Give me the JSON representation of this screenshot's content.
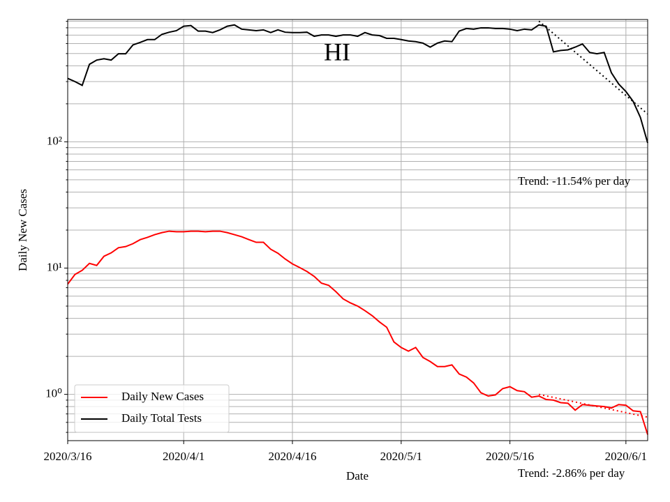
{
  "chart_data": {
    "type": "line",
    "title": "HI",
    "xlabel": "Date",
    "ylabel": "Daily New Cases",
    "log_y": true,
    "grid": true,
    "legend": "lower left",
    "x": [
      "2020/3/16",
      "2020/3/17",
      "2020/3/18",
      "2020/3/19",
      "2020/3/20",
      "2020/3/21",
      "2020/3/22",
      "2020/3/23",
      "2020/3/24",
      "2020/3/25",
      "2020/3/26",
      "2020/3/27",
      "2020/3/28",
      "2020/3/29",
      "2020/3/30",
      "2020/3/31",
      "2020/4/1",
      "2020/4/2",
      "2020/4/3",
      "2020/4/4",
      "2020/4/5",
      "2020/4/6",
      "2020/4/7",
      "2020/4/8",
      "2020/4/9",
      "2020/4/10",
      "2020/4/11",
      "2020/4/12",
      "2020/4/13",
      "2020/4/14",
      "2020/4/15",
      "2020/4/16",
      "2020/4/17",
      "2020/4/18",
      "2020/4/19",
      "2020/4/20",
      "2020/4/21",
      "2020/4/22",
      "2020/4/23",
      "2020/4/24",
      "2020/4/25",
      "2020/4/26",
      "2020/4/27",
      "2020/4/28",
      "2020/4/29",
      "2020/4/30",
      "2020/5/1",
      "2020/5/2",
      "2020/5/3",
      "2020/5/4",
      "2020/5/5",
      "2020/5/6",
      "2020/5/7",
      "2020/5/8",
      "2020/5/9",
      "2020/5/10",
      "2020/5/11",
      "2020/5/12",
      "2020/5/13",
      "2020/5/14",
      "2020/5/15",
      "2020/5/16",
      "2020/5/17",
      "2020/5/18",
      "2020/5/19",
      "2020/5/20",
      "2020/5/21",
      "2020/5/22",
      "2020/5/23",
      "2020/5/24",
      "2020/5/25",
      "2020/5/26",
      "2020/5/27",
      "2020/5/28",
      "2020/5/29",
      "2020/5/30",
      "2020/5/31",
      "2020/6/1",
      "2020/6/2",
      "2020/6/3",
      "2020/6/4"
    ],
    "xlim": [
      "2020/3/16",
      "2020/6/4"
    ],
    "xticks": [
      "2020/3/16",
      "2020/4/1",
      "2020/4/16",
      "2020/5/1",
      "2020/5/16",
      "2020/6/1"
    ],
    "ylim": [
      0.43,
      930
    ],
    "yticks": [
      {
        "value": 1,
        "label": "10⁰"
      },
      {
        "value": 10,
        "label": "10¹"
      },
      {
        "value": 100,
        "label": "10²"
      }
    ],
    "minor_yticks": [
      0.5,
      0.6,
      0.7,
      0.8,
      0.9,
      2,
      3,
      4,
      5,
      6,
      7,
      8,
      9,
      20,
      30,
      40,
      50,
      60,
      70,
      80,
      90,
      200,
      300,
      400,
      500,
      600,
      700,
      800,
      900
    ],
    "series": [
      {
        "name": "Daily New Cases",
        "color": "#ff0000",
        "values": [
          7.46,
          8.9,
          9.6,
          10.9,
          10.5,
          12.4,
          13.2,
          14.5,
          14.8,
          15.6,
          16.8,
          17.5,
          18.4,
          19.1,
          19.6,
          19.4,
          19.4,
          19.6,
          19.6,
          19.4,
          19.6,
          19.6,
          19.1,
          18.4,
          17.7,
          16.8,
          16.0,
          16.0,
          14.1,
          13.1,
          11.8,
          10.8,
          10.1,
          9.4,
          8.6,
          7.6,
          7.3,
          6.5,
          5.7,
          5.3,
          5.0,
          4.6,
          4.2,
          3.75,
          3.4,
          2.6,
          2.35,
          2.2,
          2.35,
          1.96,
          1.82,
          1.66,
          1.66,
          1.71,
          1.45,
          1.37,
          1.23,
          1.03,
          0.97,
          0.99,
          1.11,
          1.15,
          1.07,
          1.05,
          0.95,
          0.97,
          0.91,
          0.9,
          0.86,
          0.85,
          0.75,
          0.83,
          0.82,
          0.81,
          0.8,
          0.78,
          0.83,
          0.82,
          0.74,
          0.73,
          0.48
        ]
      },
      {
        "name": "Daily Total Tests",
        "color": "#000000",
        "values": [
          318,
          300,
          280,
          411,
          444,
          455,
          444,
          498,
          498,
          585,
          613,
          645,
          645,
          710,
          738,
          759,
          823,
          833,
          753,
          753,
          733,
          770,
          823,
          843,
          780,
          770,
          759,
          770,
          733,
          770,
          738,
          733,
          733,
          738,
          685,
          702,
          702,
          685,
          702,
          702,
          685,
          733,
          702,
          694,
          660,
          660,
          645,
          629,
          621,
          605,
          562,
          605,
          629,
          621,
          753,
          789,
          780,
          799,
          799,
          789,
          789,
          780,
          759,
          780,
          770,
          843,
          823,
          516,
          529,
          535,
          562,
          595,
          510,
          498,
          510,
          352,
          287,
          250,
          209,
          156,
          98
        ]
      },
      {
        "color": "#ff0000",
        "dash": "dotted",
        "x": [
          "2020/5/20",
          "2020/6/4"
        ],
        "values": [
          1.0,
          0.66
        ]
      },
      {
        "color": "#000000",
        "dash": "dotted",
        "x": [
          "2020/5/20",
          "2020/6/4"
        ],
        "values": [
          903,
          166
        ]
      }
    ],
    "annotations": [
      "Trend: -11.54% per day",
      "Trend: -2.86% per day"
    ]
  }
}
